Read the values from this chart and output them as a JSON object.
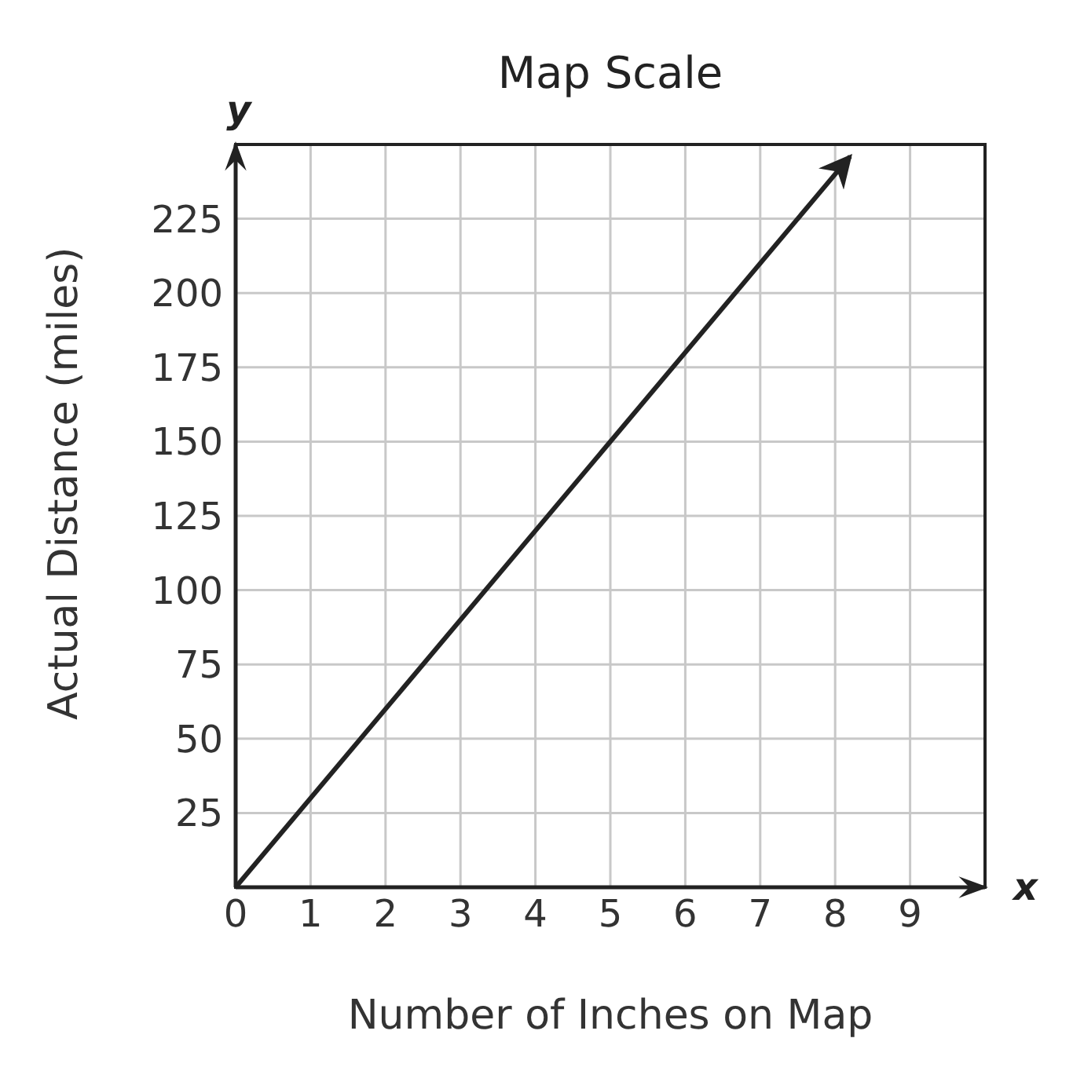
{
  "chart_data": {
    "type": "line",
    "title": "Map Scale",
    "xlabel": "Number of Inches on Map",
    "ylabel": "Actual Distance (miles)",
    "x": [
      0,
      8.2
    ],
    "series": [
      {
        "color": "#222222",
        "values": [
          0,
          246
        ]
      }
    ],
    "xlim": [
      0,
      10
    ],
    "xticks": [
      0,
      1,
      2,
      3,
      4,
      5,
      6,
      7,
      8,
      9
    ],
    "ylim": [
      0,
      250
    ],
    "yticks": [
      {
        "value": 0,
        "label": null
      },
      25,
      50,
      75,
      100,
      125,
      150,
      175,
      200,
      225
    ],
    "annotations": [
      "x",
      "y"
    ],
    "grid": true,
    "marker": "none",
    "line_style": "solid"
  }
}
